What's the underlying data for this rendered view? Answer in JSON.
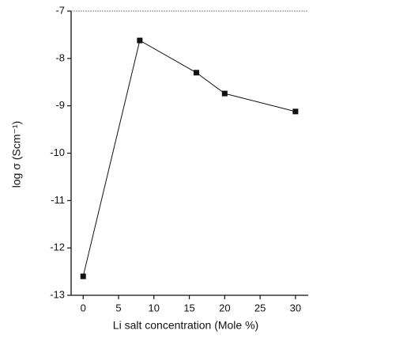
{
  "chart_data": {
    "type": "line",
    "xlabel": "Li salt concentration (Mole %)",
    "ylabel": "log σ (Scm⁻¹)",
    "x": [
      0,
      8,
      16,
      20,
      30
    ],
    "series": [
      {
        "color": "#111111",
        "values": [
          -12.6,
          -7.62,
          -8.3,
          -8.74,
          -9.12
        ]
      }
    ],
    "xlim": [
      -1.7,
      31.8
    ],
    "xticks": [
      0,
      5,
      10,
      15,
      20,
      25,
      30
    ],
    "ylim": [
      -13,
      -7
    ],
    "yticks": [
      -13,
      -12,
      -11,
      -10,
      -9,
      -8,
      -7
    ]
  }
}
